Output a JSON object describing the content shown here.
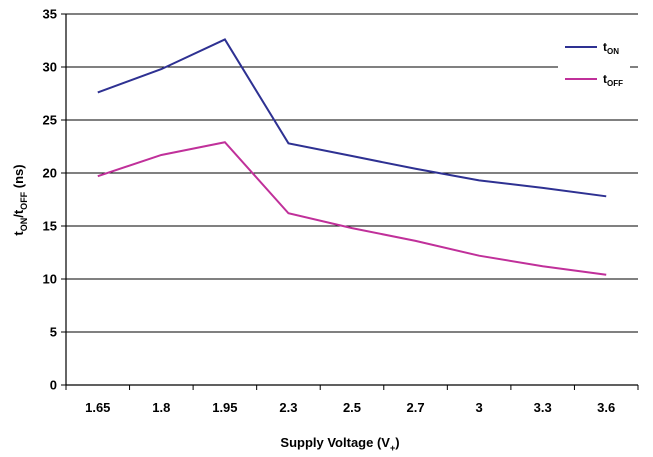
{
  "chart_data": {
    "type": "line",
    "categories": [
      "1.65",
      "1.8",
      "1.95",
      "2.3",
      "2.5",
      "2.7",
      "3",
      "3.3",
      "3.6"
    ],
    "series": [
      {
        "name": "tON",
        "name_main": "t",
        "name_sub": "ON",
        "color": "#2e3192",
        "values": [
          27.6,
          29.8,
          32.6,
          22.8,
          21.6,
          20.4,
          19.3,
          18.6,
          17.8
        ]
      },
      {
        "name": "tOFF",
        "name_main": "t",
        "name_sub": "OFF",
        "color": "#c0309a",
        "values": [
          19.7,
          21.7,
          22.9,
          16.2,
          14.8,
          13.6,
          12.2,
          11.2,
          10.4
        ]
      }
    ],
    "xlabel_main": "Supply Voltage (V",
    "xlabel_sub": "+",
    "xlabel_end": ")",
    "ylabel_parts": {
      "t1": "t",
      "sub1": "ON",
      "slash": "/",
      "t2": "t",
      "sub2": "OFF",
      "unit": " (ns)"
    },
    "ylim": [
      0,
      35
    ],
    "yticks": [
      0,
      5,
      10,
      15,
      20,
      25,
      30,
      35
    ],
    "grid": true,
    "legend": "top-right"
  }
}
